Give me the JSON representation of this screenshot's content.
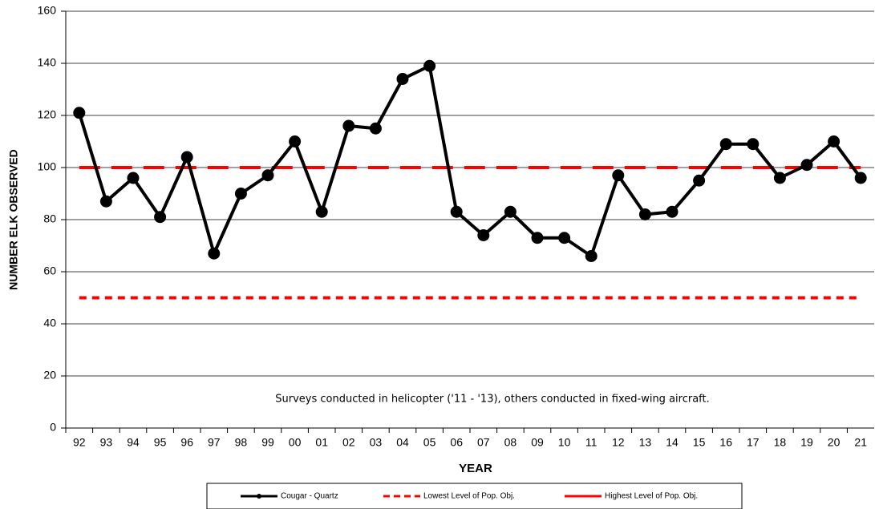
{
  "chart_data": {
    "type": "line",
    "x_label": "YEAR",
    "y_label": "NUMBER ELK OBSERVED",
    "annotation": "Surveys conducted in helicopter ('11 - '13), others conducted in fixed-wing aircraft.",
    "categories": [
      "92",
      "93",
      "94",
      "95",
      "96",
      "97",
      "98",
      "99",
      "00",
      "01",
      "02",
      "03",
      "04",
      "05",
      "06",
      "07",
      "08",
      "09",
      "10",
      "11",
      "12",
      "13",
      "14",
      "15",
      "16",
      "17",
      "18",
      "19",
      "20",
      "21"
    ],
    "series": [
      {
        "name": "Cougar - Quartz",
        "color": "#000000",
        "line_style": "solid",
        "markers": true,
        "values": [
          121,
          87,
          96,
          81,
          104,
          67,
          90,
          97,
          110,
          83,
          116,
          115,
          134,
          139,
          83,
          74,
          83,
          73,
          73,
          66,
          97,
          82,
          83,
          95,
          109,
          109,
          96,
          101,
          110,
          96
        ]
      },
      {
        "name": "Lowest Level of Pop. Obj.",
        "color": "#ff0000",
        "line_style": "dashed",
        "markers": false,
        "values": [
          50,
          50,
          50,
          50,
          50,
          50,
          50,
          50,
          50,
          50,
          50,
          50,
          50,
          50,
          50,
          50,
          50,
          50,
          50,
          50,
          50,
          50,
          50,
          50,
          50,
          50,
          50,
          50,
          50,
          50
        ]
      },
      {
        "name": "Highest Level of Pop. Obj.",
        "color": "#ff0000",
        "line_style": "long-dashed",
        "markers": false,
        "values": [
          100,
          100,
          100,
          100,
          100,
          100,
          100,
          100,
          100,
          100,
          100,
          100,
          100,
          100,
          100,
          100,
          100,
          100,
          100,
          100,
          100,
          100,
          100,
          100,
          100,
          100,
          100,
          100,
          100,
          100
        ]
      }
    ],
    "ylim": [
      0,
      160
    ],
    "yticks": [
      0,
      20,
      40,
      60,
      80,
      100,
      120,
      140,
      160
    ],
    "grid": true,
    "legend": "bottom"
  }
}
